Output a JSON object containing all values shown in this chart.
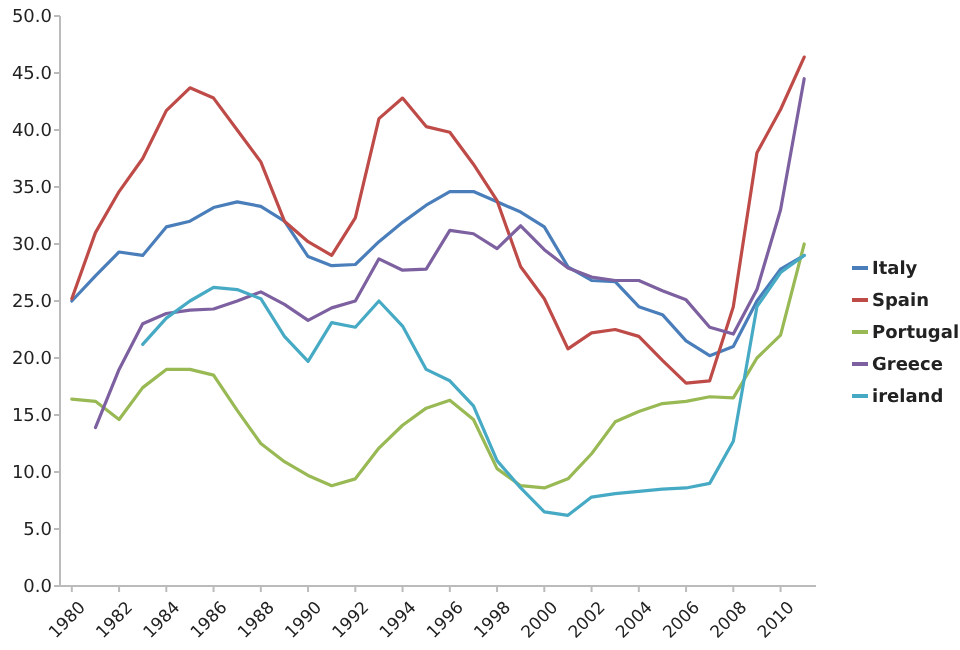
{
  "chart_data": {
    "type": "line",
    "x": [
      1980,
      1981,
      1982,
      1983,
      1984,
      1985,
      1986,
      1987,
      1988,
      1989,
      1990,
      1991,
      1992,
      1993,
      1994,
      1995,
      1996,
      1997,
      1998,
      1999,
      2000,
      2001,
      2002,
      2003,
      2004,
      2005,
      2006,
      2007,
      2008,
      2009,
      2010,
      2011
    ],
    "xlim": [
      1979.5,
      2011.5
    ],
    "xticks": [
      1980,
      1982,
      1984,
      1986,
      1988,
      1990,
      1992,
      1994,
      1996,
      1998,
      2000,
      2002,
      2004,
      2006,
      2008,
      2010
    ],
    "ylim": [
      0,
      50
    ],
    "yticks": [
      {
        "value": 0,
        "label": "0.0"
      },
      {
        "value": 5,
        "label": "5.0"
      },
      {
        "value": 10,
        "label": "10.0"
      },
      {
        "value": 15,
        "label": "15.0"
      },
      {
        "value": 20,
        "label": "20.0"
      },
      {
        "value": 25,
        "label": "25.0"
      },
      {
        "value": 30,
        "label": "30.0"
      },
      {
        "value": 35,
        "label": "35.0"
      },
      {
        "value": 40,
        "label": "40.0"
      },
      {
        "value": 45,
        "label": "45.0"
      },
      {
        "value": 50,
        "label": "50.0"
      }
    ],
    "legend": "right",
    "marker": "none",
    "line_style": "solid",
    "series": [
      {
        "name": "Italy",
        "color": "#4a7ebb",
        "values": [
          25.0,
          27.2,
          29.3,
          29.0,
          31.5,
          32.0,
          33.2,
          33.7,
          33.3,
          32.0,
          28.9,
          28.1,
          28.2,
          30.2,
          31.9,
          33.4,
          34.6,
          34.6,
          33.7,
          32.8,
          31.5,
          28.0,
          26.8,
          26.7,
          24.5,
          23.8,
          21.5,
          20.2,
          21.0,
          25.0,
          27.8,
          29.0
        ]
      },
      {
        "name": "Spain",
        "color": "#be4b48",
        "values": [
          25.2,
          31.0,
          34.6,
          37.5,
          41.7,
          43.7,
          42.8,
          40.0,
          37.2,
          32.0,
          30.2,
          29.0,
          32.3,
          41.0,
          42.8,
          40.3,
          39.8,
          37.0,
          33.8,
          28.0,
          25.2,
          20.8,
          22.2,
          22.5,
          21.9,
          19.8,
          17.8,
          18.0,
          24.5,
          38.0,
          41.8,
          46.4
        ]
      },
      {
        "name": "Portugal",
        "color": "#98b954",
        "values": [
          16.4,
          16.2,
          14.6,
          17.4,
          19.0,
          19.0,
          18.5,
          15.4,
          12.5,
          10.9,
          9.7,
          8.8,
          9.4,
          12.1,
          14.1,
          15.6,
          16.3,
          14.6,
          10.3,
          8.8,
          8.6,
          9.4,
          11.6,
          14.4,
          15.3,
          16.0,
          16.2,
          16.6,
          16.5,
          20.0,
          22.0,
          30.0
        ]
      },
      {
        "name": "Greece",
        "color": "#7d60a0",
        "values": [
          null,
          13.9,
          19.0,
          23.0,
          23.9,
          24.2,
          24.3,
          25.0,
          25.8,
          24.7,
          23.3,
          24.4,
          25.0,
          28.7,
          27.7,
          27.8,
          31.2,
          30.9,
          29.6,
          31.6,
          29.5,
          27.9,
          27.1,
          26.8,
          26.8,
          25.9,
          25.1,
          22.7,
          22.1,
          26.0,
          33.0,
          44.5
        ]
      },
      {
        "name": "ireland",
        "color": "#46aac5",
        "values": [
          null,
          null,
          null,
          21.2,
          23.5,
          25.0,
          26.2,
          26.0,
          25.2,
          21.9,
          19.7,
          23.1,
          22.7,
          25.0,
          22.8,
          19.0,
          18.0,
          15.8,
          11.0,
          8.6,
          6.5,
          6.2,
          7.8,
          8.1,
          8.3,
          8.5,
          8.6,
          9.0,
          12.7,
          24.5,
          27.5,
          29.0
        ]
      }
    ]
  }
}
